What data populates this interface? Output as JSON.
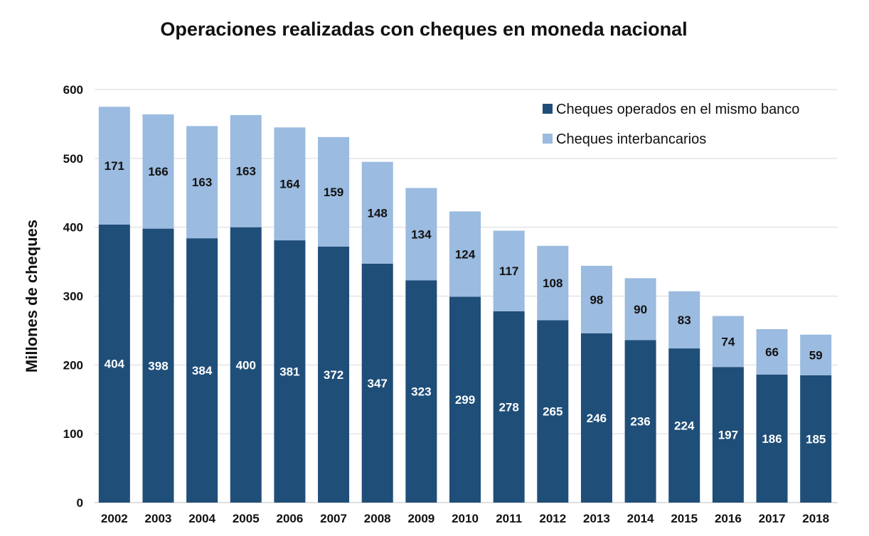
{
  "chart_data": {
    "type": "bar",
    "stacked": true,
    "title": "Operaciones realizadas con cheques en moneda nacional",
    "xlabel": "",
    "ylabel": "Millones de cheques",
    "ylim": [
      0,
      600
    ],
    "yticks": [
      0,
      100,
      200,
      300,
      400,
      500,
      600
    ],
    "grid": true,
    "legend_position": "top-right",
    "categories": [
      "2002",
      "2003",
      "2004",
      "2005",
      "2006",
      "2007",
      "2008",
      "2009",
      "2010",
      "2011",
      "2012",
      "2013",
      "2014",
      "2015",
      "2016",
      "2017",
      "2018"
    ],
    "series": [
      {
        "name": "Cheques operados en el mismo banco",
        "color": "#1f4e79",
        "label_color": "#ffffff",
        "values": [
          404,
          398,
          384,
          400,
          381,
          372,
          347,
          323,
          299,
          278,
          265,
          246,
          236,
          224,
          197,
          186,
          185
        ]
      },
      {
        "name": "Cheques interbancarios",
        "color": "#9bbbe0",
        "label_color": "#111111",
        "values": [
          171,
          166,
          163,
          163,
          164,
          159,
          148,
          134,
          124,
          117,
          108,
          98,
          90,
          83,
          74,
          66,
          59
        ]
      }
    ]
  }
}
